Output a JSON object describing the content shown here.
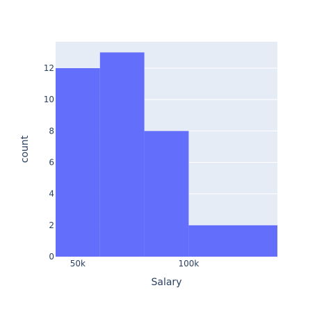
{
  "chart_data": {
    "type": "bar",
    "subtype": "histogram",
    "x_ticks": [
      {
        "value": 50000,
        "label": "50k"
      },
      {
        "value": 100000,
        "label": "100k"
      }
    ],
    "y_ticks": [
      {
        "value": 0,
        "label": "0"
      },
      {
        "value": 2,
        "label": "2"
      },
      {
        "value": 4,
        "label": "4"
      },
      {
        "value": 6,
        "label": "6"
      },
      {
        "value": 8,
        "label": "8"
      },
      {
        "value": 10,
        "label": "10"
      },
      {
        "value": 12,
        "label": "12"
      }
    ],
    "bins": [
      {
        "x0": 40000,
        "x1": 60000,
        "count": 12
      },
      {
        "x0": 60000,
        "x1": 80000,
        "count": 13
      },
      {
        "x0": 80000,
        "x1": 100000,
        "count": 8
      },
      {
        "x0": 100000,
        "x1": 140000,
        "count": 2
      }
    ],
    "xlabel": "Salary",
    "ylabel": "count",
    "xlim": [
      40000,
      140000
    ],
    "ylim": [
      0,
      13.68
    ],
    "grid": true,
    "colors": {
      "bar": "#636efa",
      "plot_bg": "#e5ecf6",
      "grid": "#ffffff",
      "text": "#2a3f5f"
    }
  }
}
